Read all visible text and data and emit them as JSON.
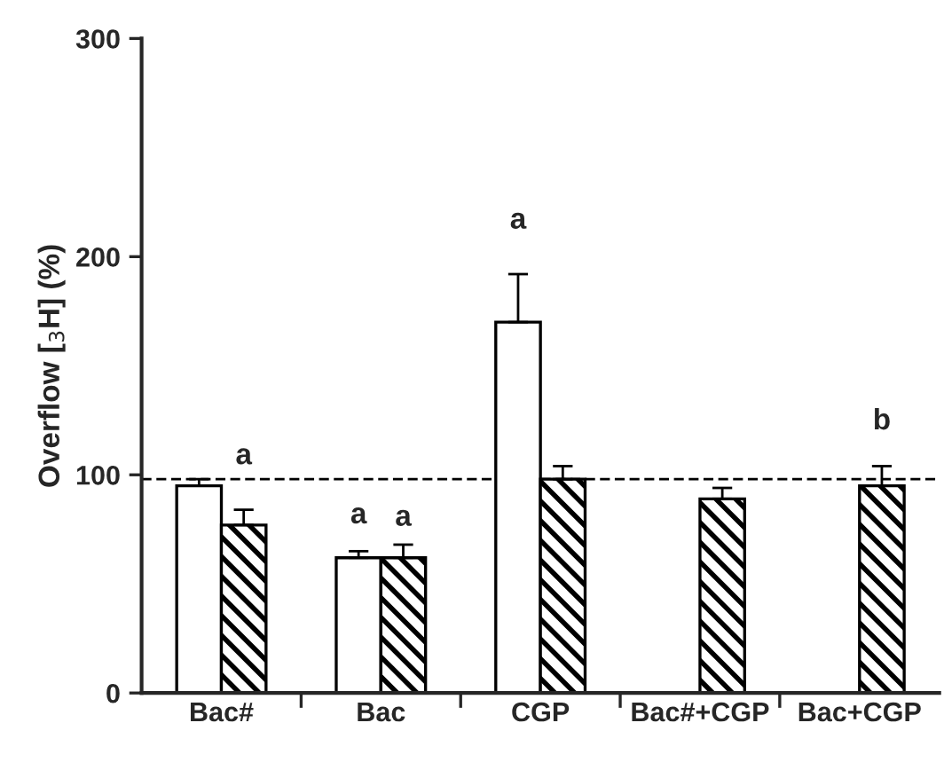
{
  "chart_data": {
    "type": "bar",
    "ylabel": "Overflow [$_{3}$H] (%)",
    "categories": [
      "Bac#",
      "Bac",
      "CGP",
      "Bac#+CGP",
      "Bac+CGP"
    ],
    "series": [
      {
        "color": "#ffffff",
        "values": [
          95,
          62,
          170,
          null,
          null
        ],
        "errors": [
          3,
          3,
          22,
          null,
          null
        ]
      },
      {
        "color": "#000000",
        "values": [
          77,
          62,
          98,
          89,
          95
        ],
        "errors": [
          7,
          6,
          6,
          5,
          9
        ]
      }
    ],
    "ylim": [
      0,
      300
    ],
    "yticks": [
      0,
      100,
      200,
      300
    ],
    "ref_lines": [
      {
        "axis": "y",
        "value": 98,
        "line_style": "dashed",
        "color": "#000000"
      }
    ],
    "annotations": [
      "a",
      "a",
      "a",
      "a",
      "b"
    ],
    "grid": false,
    "legend": false
  }
}
